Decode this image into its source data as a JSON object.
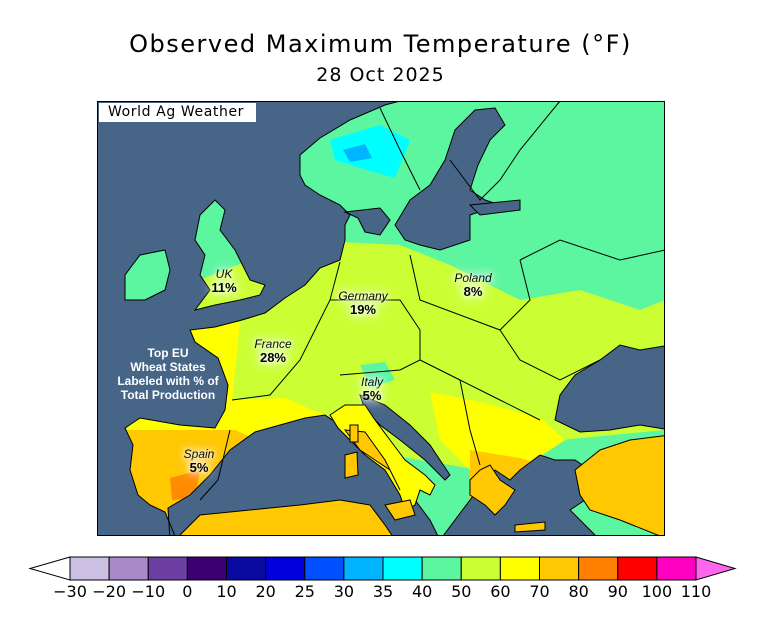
{
  "title": "Observed Maximum Temperature (°F)",
  "date": "28 Oct 2025",
  "brand": "World Ag Weather",
  "note": [
    "Top EU",
    "Wheat States",
    "Labeled with % of",
    "Total Production"
  ],
  "countries": [
    {
      "name": "UK",
      "share": "11%"
    },
    {
      "name": "Germany",
      "share": "19%"
    },
    {
      "name": "Poland",
      "share": "8%"
    },
    {
      "name": "France",
      "share": "28%"
    },
    {
      "name": "Italy",
      "share": "5%"
    },
    {
      "name": "Spain",
      "share": "5%"
    }
  ],
  "colors": {
    "sea": "#476587",
    "t35": "#00ffff",
    "t40": "#5cf5a0",
    "t50": "#ccff33",
    "t60": "#ffff00",
    "t70": "#ffc800",
    "t80": "#ff8c00",
    "t30": "#00b4ff"
  },
  "legend": {
    "labels": [
      "−30",
      "−20",
      "−10",
      "0",
      "10",
      "20",
      "25",
      "30",
      "35",
      "40",
      "50",
      "60",
      "70",
      "80",
      "90",
      "100",
      "110"
    ],
    "below_color": "#ffffff",
    "above_color": "#ff66ee",
    "colors": [
      "#cbbfe3",
      "#a889c9",
      "#6e3fa3",
      "#3d0073",
      "#0a0aa0",
      "#0000dc",
      "#0050ff",
      "#00b4ff",
      "#00ffff",
      "#5cf5a0",
      "#ccff33",
      "#ffff00",
      "#ffc800",
      "#ff8000",
      "#ff0000",
      "#ff00c0"
    ]
  }
}
